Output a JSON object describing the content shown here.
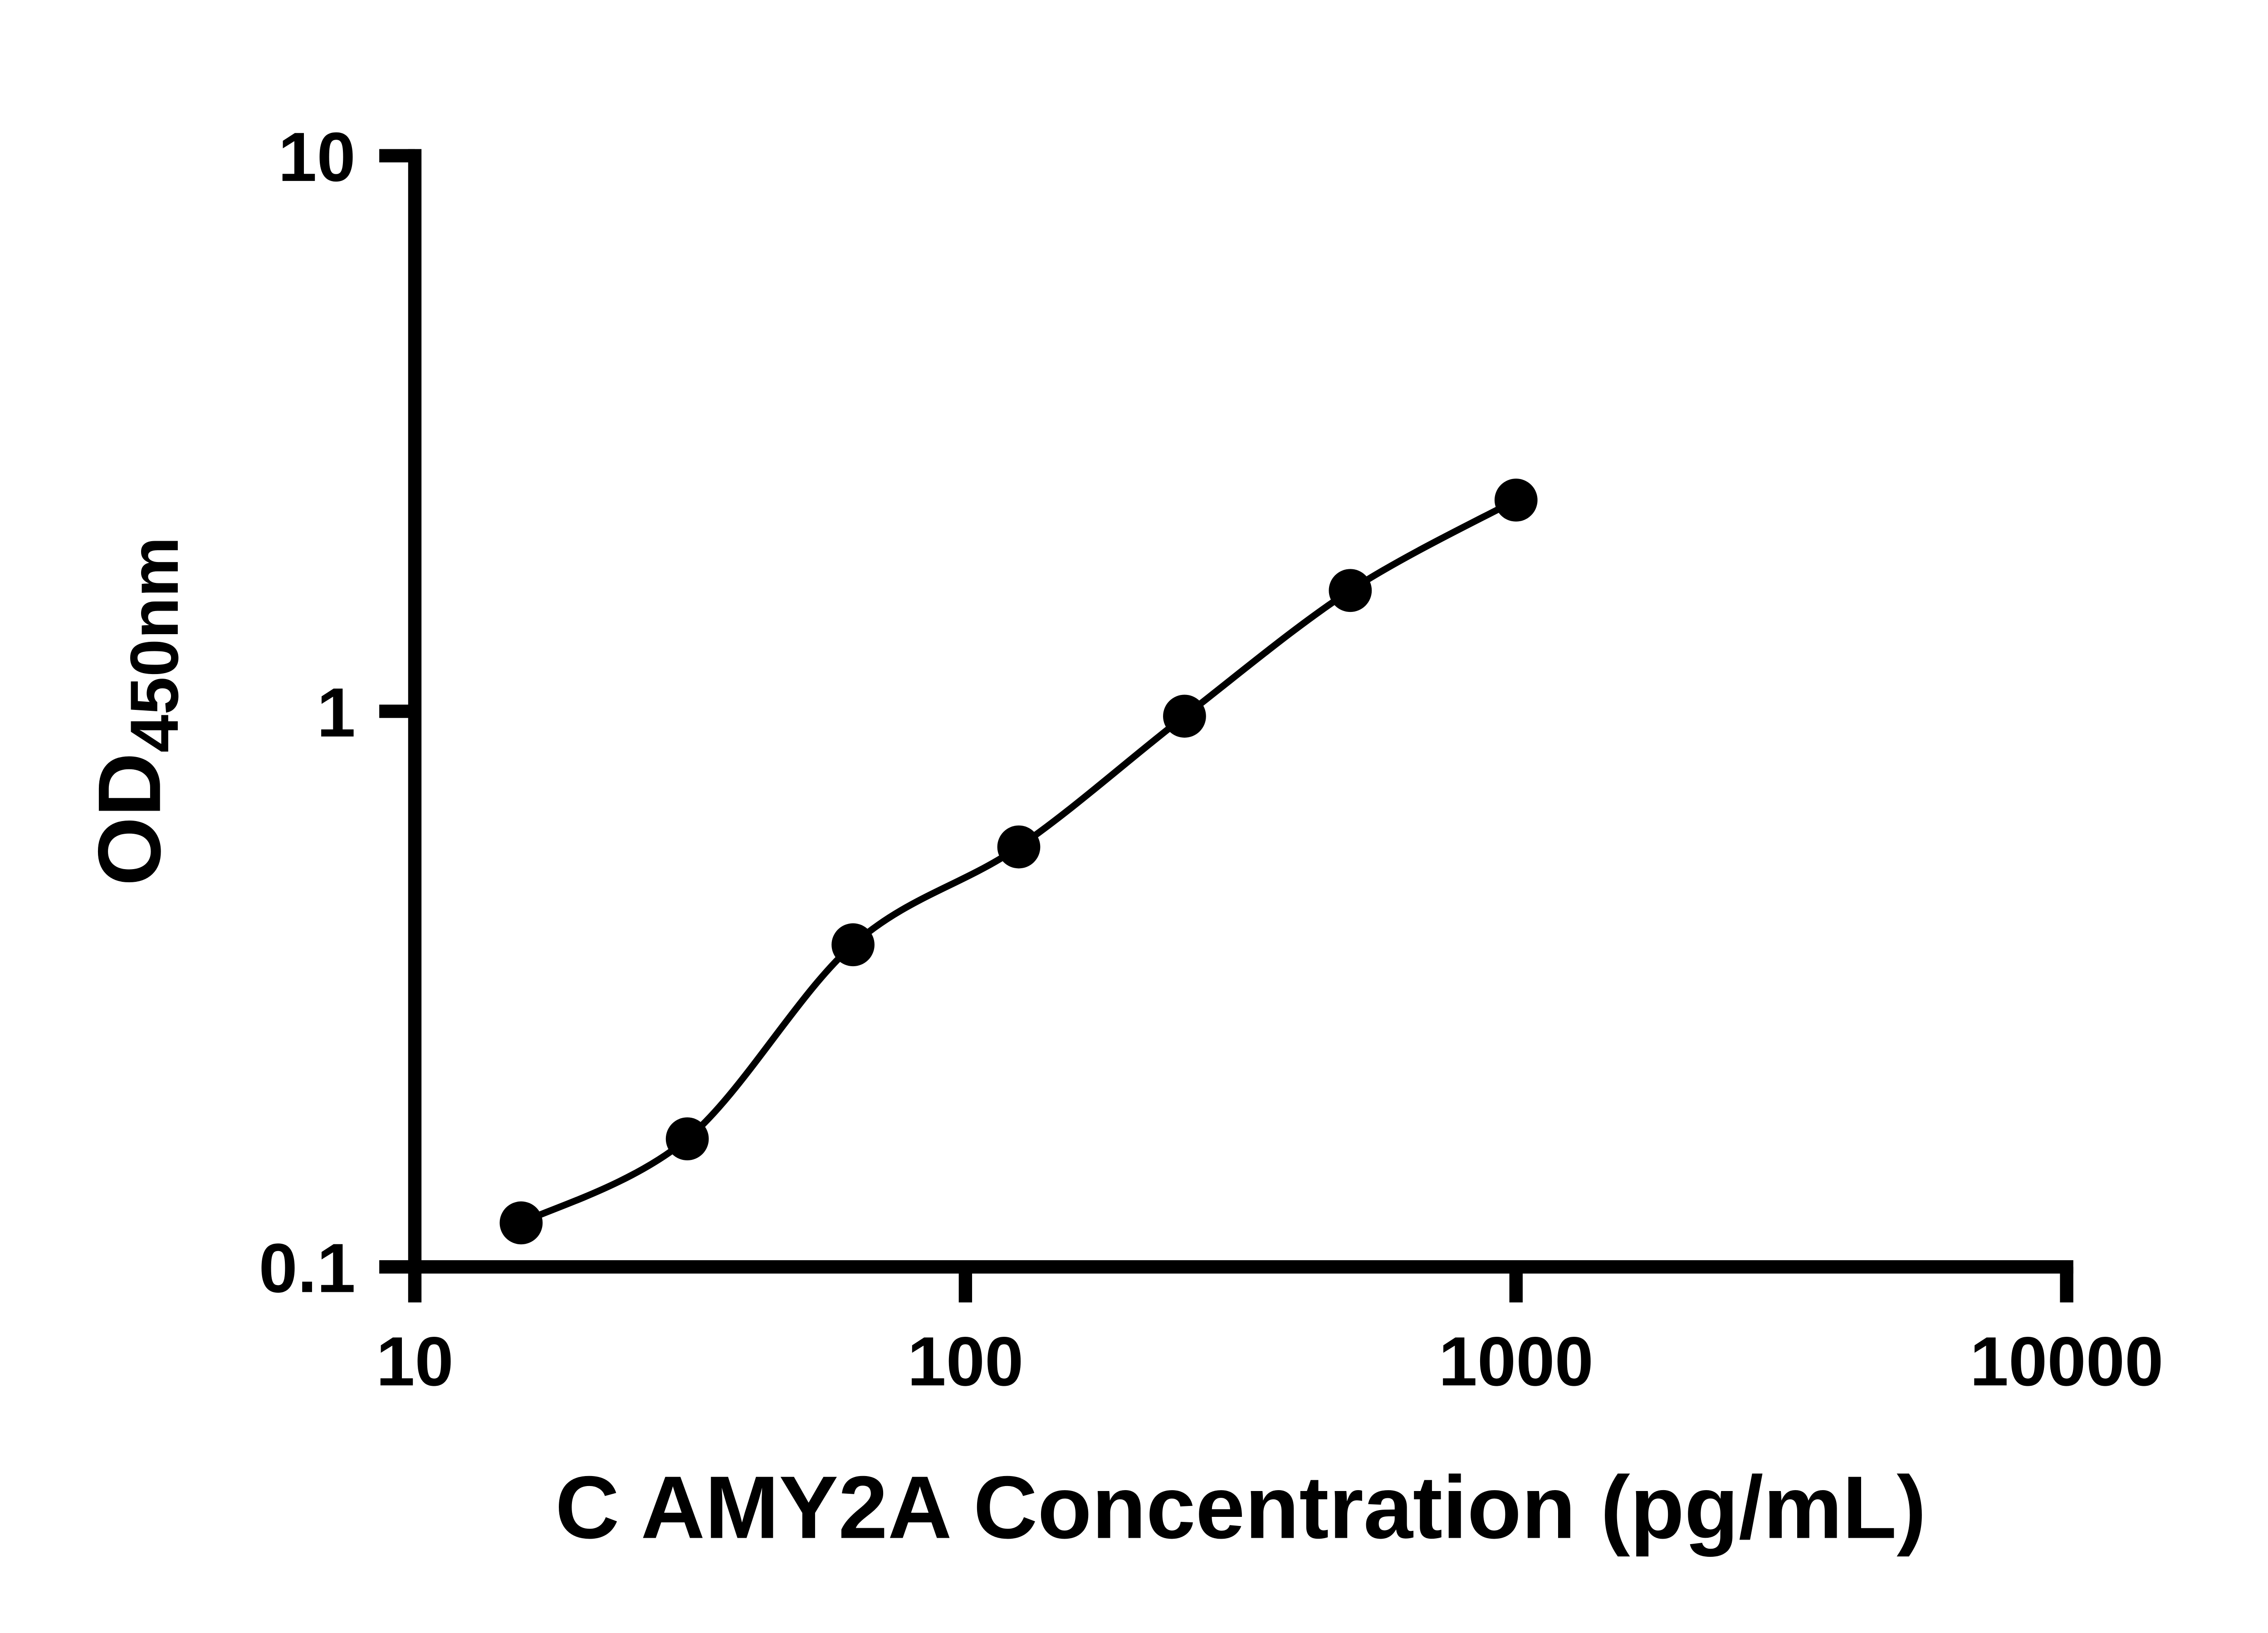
{
  "figure": {
    "background_color": "#ffffff",
    "axis_color": "#000000"
  },
  "chart_data": {
    "type": "scatter",
    "title": "",
    "xlabel": "C AMY2A Concentration (pg/mL)",
    "ylabel": "OD",
    "ylabel_subscript": "450nm",
    "xscale": "log",
    "yscale": "log",
    "xlim": [
      10,
      10000
    ],
    "ylim": [
      0.1,
      10
    ],
    "x_tick_labels": [
      "10",
      "100",
      "1000",
      "10000"
    ],
    "x_ticks": [
      10,
      100,
      1000,
      10000
    ],
    "y_tick_labels": [
      "0.1",
      "1",
      "10"
    ],
    "y_ticks": [
      0.1,
      1,
      10
    ],
    "grid": "off",
    "legend": "none",
    "line_color": "#000000",
    "marker_color": "#000000",
    "points": [
      {
        "x": 15.6,
        "y": 0.12
      },
      {
        "x": 31.25,
        "y": 0.17
      },
      {
        "x": 62.5,
        "y": 0.38
      },
      {
        "x": 125,
        "y": 0.57
      },
      {
        "x": 250,
        "y": 0.98
      },
      {
        "x": 500,
        "y": 1.65
      },
      {
        "x": 1000,
        "y": 2.4
      }
    ]
  }
}
